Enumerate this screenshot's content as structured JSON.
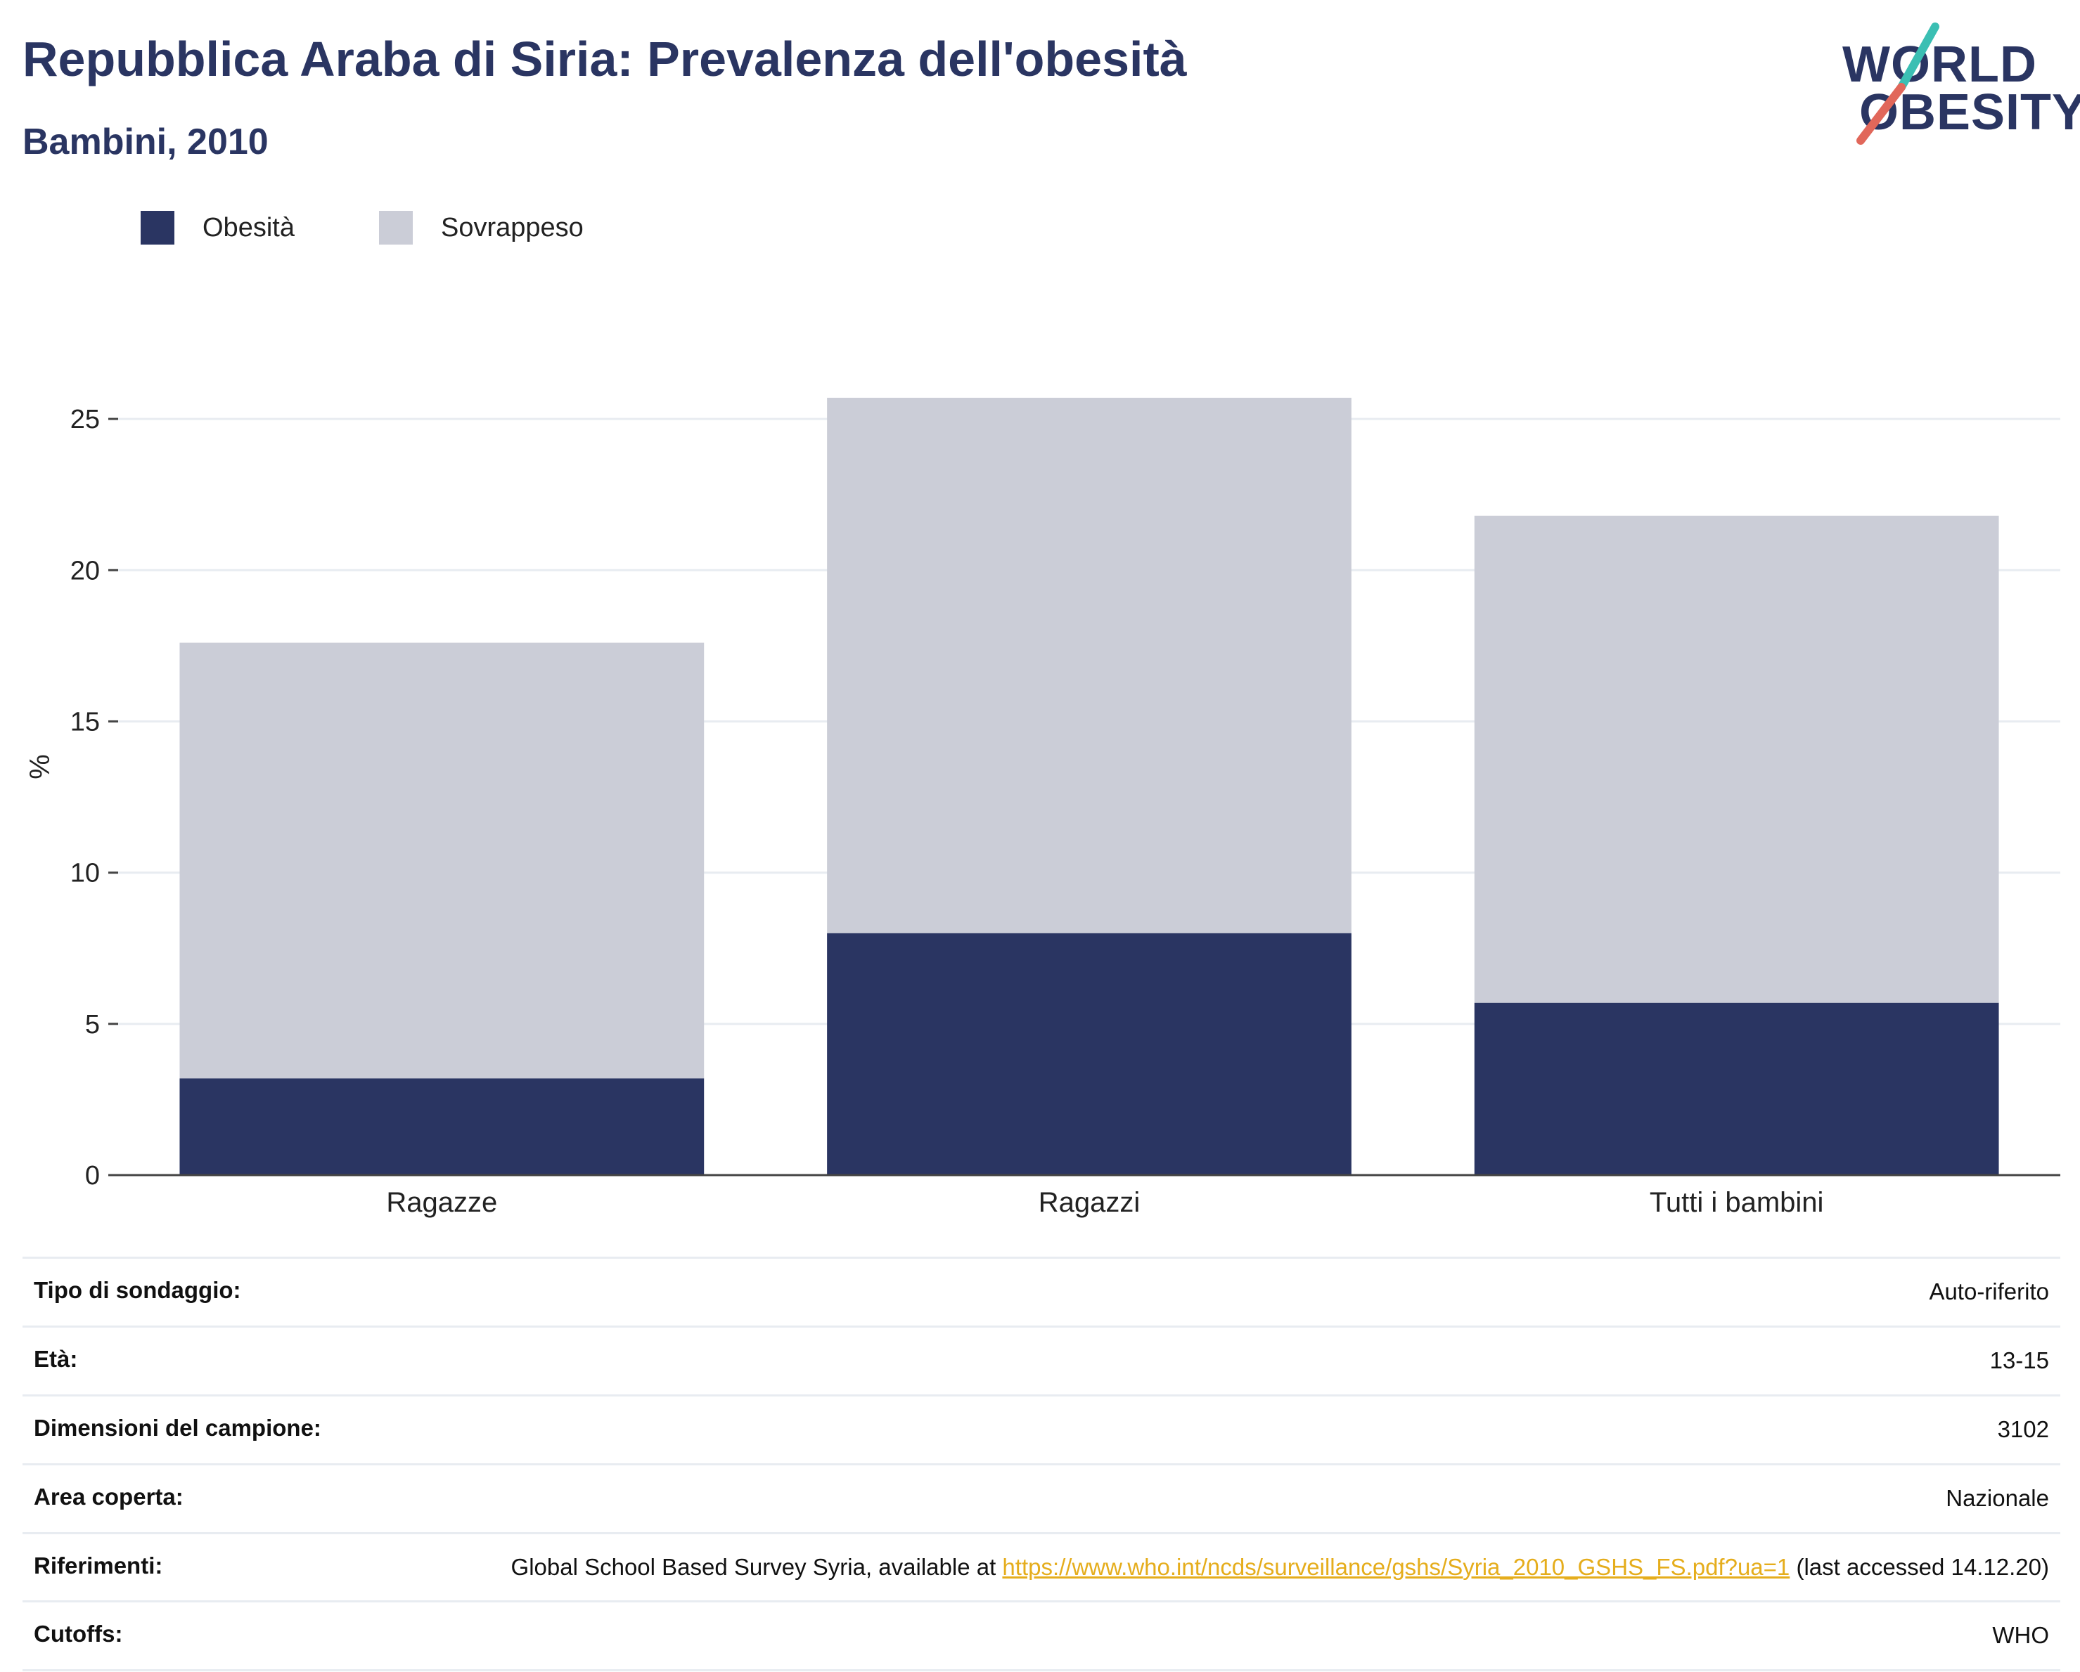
{
  "header": {
    "title": "Repubblica Araba di Siria: Prevalenza dell'obesità",
    "subtitle": "Bambini, 2010"
  },
  "logo": {
    "line1": "WORLD",
    "line2": "OBESITY",
    "colors": {
      "navy": "#2a3562",
      "teal": "#3bbfb3",
      "coral": "#e1675a"
    }
  },
  "legend": [
    {
      "label": "Obesità",
      "color": "#2a3562"
    },
    {
      "label": "Sovrappeso",
      "color": "#cbcdd7"
    }
  ],
  "chart_data": {
    "type": "bar",
    "stacked": true,
    "categories": [
      "Ragazze",
      "Ragazzi",
      "Tutti i bambini"
    ],
    "series": [
      {
        "name": "Obesità",
        "values": [
          3.2,
          8.0,
          5.7
        ],
        "color": "#2a3562"
      },
      {
        "name": "Sovrappeso",
        "values": [
          14.4,
          17.7,
          16.1
        ],
        "color": "#cbcdd7"
      }
    ],
    "ylabel": "%",
    "ylim": [
      0,
      27
    ],
    "yticks": [
      0,
      5,
      10,
      15,
      20,
      25
    ],
    "grid": true,
    "legend_position": "top-left"
  },
  "info": {
    "rows": [
      {
        "key": "Tipo di sondaggio:",
        "value": "Auto-riferito"
      },
      {
        "key": "Età:",
        "value": "13-15"
      },
      {
        "key": "Dimensioni del campione:",
        "value": "3102"
      },
      {
        "key": "Area coperta:",
        "value": "Nazionale"
      }
    ],
    "references": {
      "key": "Riferimenti:",
      "before": "Global School Based Survey Syria, available at ",
      "link": "https://www.who.int/ncds/surveillance/gshs/Syria_2010_GSHS_FS.pdf?ua=1",
      "after": " (last accessed 14.12.20)"
    },
    "cutoffs": {
      "key": "Cutoffs:",
      "value": "WHO"
    }
  }
}
